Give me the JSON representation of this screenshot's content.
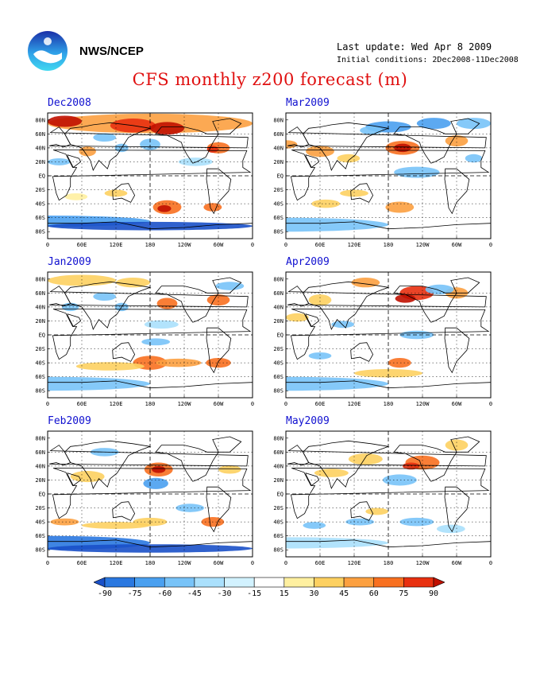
{
  "header": {
    "org": "NWS/NCEP",
    "last_update": "Last update: Wed Apr 8 2009",
    "initial_conditions": "Initial conditions: 2Dec2008-11Dec2008",
    "title": "CFS monthly z200 forecast (m)"
  },
  "axes": {
    "lat_labels": [
      "80N",
      "60N",
      "40N",
      "20N",
      "EQ",
      "20S",
      "40S",
      "60S",
      "80S"
    ],
    "lon_labels": [
      "0",
      "60E",
      "120E",
      "180",
      "120W",
      "60W",
      "0"
    ]
  },
  "panels": [
    {
      "label": "Dec2008"
    },
    {
      "label": "Mar2009"
    },
    {
      "label": "Jan2009"
    },
    {
      "label": "Apr2009"
    },
    {
      "label": "Feb2009"
    },
    {
      "label": "May2009"
    }
  ],
  "colorbar": {
    "ticks": [
      "-90",
      "-75",
      "-60",
      "-45",
      "-30",
      "-15",
      "15",
      "30",
      "45",
      "60",
      "75",
      "90"
    ],
    "colors": [
      "#1a50c8",
      "#2a78e0",
      "#4aa0f0",
      "#78c3f8",
      "#aae0fc",
      "#d2f2ff",
      "#ffffff",
      "#fff0a0",
      "#fdd060",
      "#fca040",
      "#f87020",
      "#e83010",
      "#c01000"
    ]
  }
}
